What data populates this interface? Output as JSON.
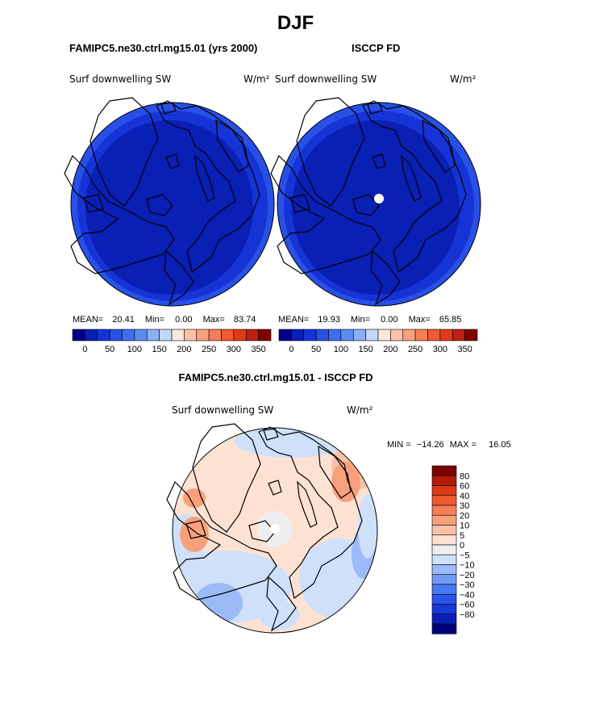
{
  "page": {
    "title": "DJF",
    "left_header": "FAMIPC5.ne30.ctrl.mg15.01 (yrs 2000)",
    "right_header": "ISCCP FD",
    "diff_header": "FAMIPC5.ne30.ctrl.mg15.01 - ISCCP FD"
  },
  "panels": [
    {
      "variable": "Surf downwelling SW",
      "units": "W/m²",
      "mean_label": "MEAN=",
      "mean": "20.41",
      "min_label": "Min=",
      "min": "0.00",
      "max_label": "Max=",
      "max": "83.74"
    },
    {
      "variable": "Surf downwelling SW",
      "units": "W/m²",
      "mean_label": "MEAN=",
      "mean": "19.93",
      "min_label": "Min=",
      "min": "0.00",
      "max_label": "Max=",
      "max": "65.85"
    }
  ],
  "diff_panel": {
    "variable": "Surf downwelling SW",
    "units": "W/m²",
    "min_label": "MIN =",
    "min": "−14.26",
    "max_label": "MAX =",
    "max": "16.05"
  },
  "colors": {
    "abs_scale": [
      "#00008a",
      "#0a1fb4",
      "#1634d6",
      "#2850e6",
      "#3d6ef0",
      "#5a8cf3",
      "#8ab0f7",
      "#c4d8fb",
      "#fde6dc",
      "#fbc2aa",
      "#f9a080",
      "#f57d58",
      "#f05a34",
      "#e03a1a",
      "#c02010",
      "#800000"
    ],
    "diff_scale": [
      "#00007d",
      "#0a1fb8",
      "#1838d8",
      "#2a55ea",
      "#4878f2",
      "#7099f5",
      "#9cbaf8",
      "#cfe0fb",
      "#eeeeee",
      "#fde2d4",
      "#fbc1a6",
      "#f8a07c",
      "#f47e55",
      "#ef5a30",
      "#dc3a16",
      "#b01c08",
      "#7d0000"
    ]
  },
  "chart_data": [
    {
      "type": "heatmap",
      "projection": "north polar stereographic",
      "title": "Surf downwelling SW",
      "units": "W/m²",
      "mean": 20.41,
      "min": 0.0,
      "max": 83.74,
      "colorbar_ticks": [
        "0",
        "50",
        "100",
        "150",
        "200",
        "250",
        "300",
        "350"
      ]
    },
    {
      "type": "heatmap",
      "projection": "north polar stereographic",
      "title": "Surf downwelling SW",
      "units": "W/m²",
      "mean": 19.93,
      "min": 0.0,
      "max": 65.85,
      "colorbar_ticks": [
        "0",
        "50",
        "100",
        "150",
        "200",
        "250",
        "300",
        "350"
      ]
    },
    {
      "type": "heatmap",
      "projection": "north polar stereographic",
      "title": "Surf downwelling SW",
      "units": "W/m²",
      "min": -14.26,
      "max": 16.05,
      "colorbar_ticks": [
        "80",
        "60",
        "40",
        "30",
        "20",
        "10",
        "5",
        "0",
        "−5",
        "−10",
        "−20",
        "−30",
        "−40",
        "−60",
        "−80"
      ]
    }
  ]
}
